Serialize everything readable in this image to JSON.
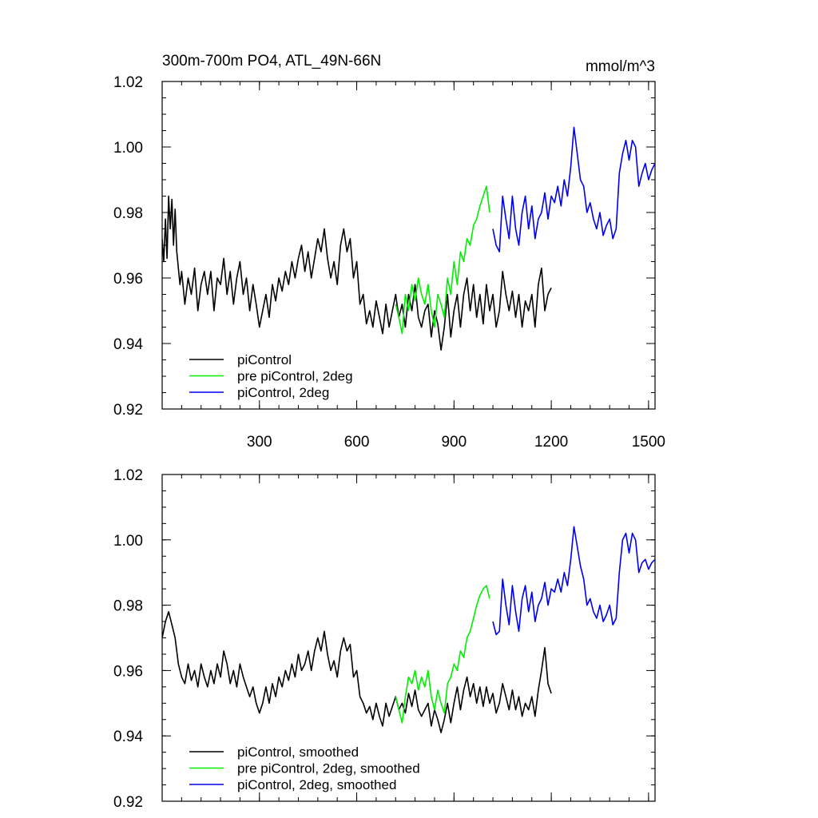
{
  "chart_data": [
    {
      "type": "line",
      "title": "300m-700m PO4, ATL_49N-66N",
      "units": "mmol/m^3",
      "xlim": [
        0,
        1520
      ],
      "ylim": [
        0.92,
        1.02
      ],
      "x_ticks": [
        300,
        600,
        900,
        1200,
        1500
      ],
      "x_tick_labels": [
        "300",
        "600",
        "900",
        "1200",
        "1500"
      ],
      "y_ticks": [
        0.92,
        0.94,
        0.96,
        0.98,
        1.0,
        1.02
      ],
      "y_tick_labels": [
        "0.92",
        "0.94",
        "0.96",
        "0.98",
        "1.00",
        "1.02"
      ],
      "legend_position": "bottom-left",
      "series": [
        {
          "name": "piControl",
          "color": "#000000",
          "x": [
            0,
            5,
            10,
            15,
            20,
            25,
            30,
            35,
            40,
            45,
            50,
            55,
            60,
            70,
            80,
            90,
            100,
            110,
            120,
            130,
            140,
            150,
            160,
            170,
            180,
            190,
            200,
            210,
            220,
            230,
            240,
            250,
            260,
            270,
            280,
            290,
            300,
            310,
            320,
            330,
            340,
            350,
            360,
            370,
            380,
            390,
            400,
            410,
            420,
            430,
            440,
            450,
            460,
            470,
            480,
            490,
            500,
            510,
            520,
            530,
            540,
            550,
            560,
            570,
            580,
            590,
            600,
            610,
            620,
            630,
            640,
            650,
            660,
            670,
            680,
            690,
            700,
            710,
            720,
            730,
            740,
            750,
            760,
            770,
            780,
            790,
            800,
            810,
            820,
            830,
            840,
            850,
            860,
            870,
            880,
            890,
            900,
            910,
            920,
            930,
            940,
            950,
            960,
            970,
            980,
            990,
            1000,
            1010,
            1020,
            1030,
            1040,
            1050,
            1060,
            1070,
            1080,
            1090,
            1100,
            1110,
            1120,
            1130,
            1140,
            1150,
            1160,
            1170,
            1180,
            1190,
            1200
          ],
          "values": [
            0.972,
            0.965,
            0.978,
            0.966,
            0.985,
            0.975,
            0.984,
            0.97,
            0.981,
            0.968,
            0.963,
            0.958,
            0.962,
            0.952,
            0.96,
            0.955,
            0.963,
            0.95,
            0.958,
            0.962,
            0.955,
            0.962,
            0.95,
            0.96,
            0.958,
            0.966,
            0.955,
            0.962,
            0.952,
            0.96,
            0.965,
            0.955,
            0.96,
            0.95,
            0.958,
            0.952,
            0.945,
            0.95,
            0.955,
            0.948,
            0.958,
            0.953,
            0.96,
            0.956,
            0.962,
            0.958,
            0.965,
            0.96,
            0.966,
            0.97,
            0.962,
            0.968,
            0.96,
            0.966,
            0.972,
            0.968,
            0.975,
            0.966,
            0.96,
            0.965,
            0.958,
            0.97,
            0.975,
            0.968,
            0.972,
            0.96,
            0.965,
            0.952,
            0.955,
            0.946,
            0.95,
            0.945,
            0.953,
            0.948,
            0.943,
            0.952,
            0.945,
            0.95,
            0.955,
            0.948,
            0.952,
            0.945,
            0.955,
            0.95,
            0.958,
            0.948,
            0.945,
            0.95,
            0.952,
            0.942,
            0.95,
            0.946,
            0.938,
            0.945,
            0.955,
            0.942,
            0.95,
            0.955,
            0.945,
            0.955,
            0.96,
            0.95,
            0.958,
            0.948,
            0.955,
            0.946,
            0.958,
            0.95,
            0.955,
            0.945,
            0.95,
            0.962,
            0.955,
            0.95,
            0.956,
            0.948,
            0.955,
            0.945,
            0.953,
            0.95,
            0.955,
            0.945,
            0.958,
            0.963,
            0.95,
            0.955,
            0.957
          ]
        },
        {
          "name": "pre piControl, 2deg",
          "color": "#00ee00",
          "x": [
            720,
            730,
            740,
            750,
            760,
            770,
            780,
            790,
            800,
            810,
            820,
            830,
            840,
            850,
            860,
            870,
            880,
            890,
            900,
            910,
            920,
            930,
            940,
            950,
            960,
            970,
            980,
            990,
            1000,
            1010
          ],
          "values": [
            0.952,
            0.948,
            0.943,
            0.955,
            0.95,
            0.958,
            0.953,
            0.96,
            0.955,
            0.952,
            0.958,
            0.95,
            0.945,
            0.955,
            0.952,
            0.948,
            0.96,
            0.955,
            0.965,
            0.958,
            0.968,
            0.965,
            0.972,
            0.97,
            0.976,
            0.978,
            0.982,
            0.985,
            0.988,
            0.98
          ]
        },
        {
          "name": "piControl, 2deg",
          "color": "#0000ee",
          "x": [
            1020,
            1030,
            1040,
            1050,
            1060,
            1070,
            1080,
            1090,
            1100,
            1110,
            1120,
            1130,
            1140,
            1150,
            1160,
            1170,
            1180,
            1190,
            1200,
            1210,
            1220,
            1230,
            1240,
            1250,
            1260,
            1270,
            1280,
            1290,
            1300,
            1310,
            1320,
            1330,
            1340,
            1350,
            1360,
            1370,
            1380,
            1390,
            1400,
            1410,
            1420,
            1430,
            1440,
            1450,
            1460,
            1470,
            1480,
            1490,
            1500,
            1510,
            1520
          ],
          "values": [
            0.975,
            0.97,
            0.968,
            0.985,
            0.978,
            0.972,
            0.985,
            0.975,
            0.97,
            0.98,
            0.985,
            0.975,
            0.982,
            0.972,
            0.978,
            0.98,
            0.986,
            0.978,
            0.985,
            0.983,
            0.988,
            0.982,
            0.99,
            0.985,
            0.994,
            1.006,
            0.998,
            0.99,
            0.988,
            0.98,
            0.983,
            0.978,
            0.975,
            0.98,
            0.973,
            0.976,
            0.978,
            0.972,
            0.975,
            0.992,
            0.998,
            1.002,
            0.996,
            1.002,
            1.0,
            0.988,
            0.992,
            0.995,
            0.99,
            0.993,
            0.995
          ]
        }
      ]
    },
    {
      "type": "line",
      "xlim": [
        0,
        1520
      ],
      "ylim": [
        0.92,
        1.02
      ],
      "x_ticks": [
        300,
        600,
        900,
        1200,
        1500
      ],
      "y_ticks": [
        0.92,
        0.94,
        0.96,
        0.98,
        1.0,
        1.02
      ],
      "y_tick_labels": [
        "0.92",
        "0.94",
        "0.96",
        "0.98",
        "1.00",
        "1.02"
      ],
      "legend_position": "bottom-left",
      "series": [
        {
          "name": "piControl, smoothed",
          "color": "#000000",
          "x": [
            0,
            10,
            20,
            30,
            40,
            50,
            60,
            70,
            80,
            90,
            100,
            110,
            120,
            130,
            140,
            150,
            160,
            170,
            180,
            190,
            200,
            210,
            220,
            230,
            240,
            250,
            260,
            270,
            280,
            290,
            300,
            310,
            320,
            330,
            340,
            350,
            360,
            370,
            380,
            390,
            400,
            410,
            420,
            430,
            440,
            450,
            460,
            470,
            480,
            490,
            500,
            510,
            520,
            530,
            540,
            550,
            560,
            570,
            580,
            590,
            600,
            610,
            620,
            630,
            640,
            650,
            660,
            670,
            680,
            690,
            700,
            710,
            720,
            730,
            740,
            750,
            760,
            770,
            780,
            790,
            800,
            810,
            820,
            830,
            840,
            850,
            860,
            870,
            880,
            890,
            900,
            910,
            920,
            930,
            940,
            950,
            960,
            970,
            980,
            990,
            1000,
            1010,
            1020,
            1030,
            1040,
            1050,
            1060,
            1070,
            1080,
            1090,
            1100,
            1110,
            1120,
            1130,
            1140,
            1150,
            1160,
            1170,
            1180,
            1190,
            1200
          ],
          "values": [
            0.97,
            0.975,
            0.978,
            0.974,
            0.97,
            0.962,
            0.958,
            0.956,
            0.962,
            0.957,
            0.96,
            0.955,
            0.962,
            0.958,
            0.955,
            0.96,
            0.956,
            0.962,
            0.958,
            0.966,
            0.962,
            0.956,
            0.96,
            0.955,
            0.962,
            0.958,
            0.955,
            0.952,
            0.955,
            0.95,
            0.947,
            0.95,
            0.955,
            0.95,
            0.956,
            0.952,
            0.958,
            0.955,
            0.96,
            0.957,
            0.962,
            0.958,
            0.965,
            0.96,
            0.962,
            0.966,
            0.96,
            0.966,
            0.97,
            0.966,
            0.972,
            0.965,
            0.96,
            0.963,
            0.958,
            0.966,
            0.97,
            0.966,
            0.968,
            0.958,
            0.96,
            0.952,
            0.95,
            0.947,
            0.949,
            0.945,
            0.95,
            0.946,
            0.943,
            0.95,
            0.946,
            0.949,
            0.952,
            0.948,
            0.95,
            0.947,
            0.953,
            0.949,
            0.954,
            0.948,
            0.946,
            0.948,
            0.95,
            0.943,
            0.948,
            0.945,
            0.941,
            0.945,
            0.95,
            0.944,
            0.95,
            0.955,
            0.948,
            0.954,
            0.958,
            0.952,
            0.956,
            0.95,
            0.955,
            0.949,
            0.955,
            0.95,
            0.953,
            0.947,
            0.95,
            0.956,
            0.952,
            0.948,
            0.954,
            0.948,
            0.952,
            0.946,
            0.95,
            0.948,
            0.952,
            0.946,
            0.954,
            0.96,
            0.967,
            0.956,
            0.953
          ]
        },
        {
          "name": "pre piControl, 2deg, smoothed",
          "color": "#00ee00",
          "x": [
            720,
            730,
            740,
            750,
            760,
            770,
            780,
            790,
            800,
            810,
            820,
            830,
            840,
            850,
            860,
            870,
            880,
            890,
            900,
            910,
            920,
            930,
            940,
            950,
            960,
            970,
            980,
            990,
            1000,
            1010
          ],
          "values": [
            0.952,
            0.948,
            0.944,
            0.952,
            0.958,
            0.956,
            0.96,
            0.954,
            0.958,
            0.955,
            0.96,
            0.952,
            0.948,
            0.954,
            0.95,
            0.947,
            0.956,
            0.958,
            0.962,
            0.96,
            0.966,
            0.964,
            0.97,
            0.972,
            0.976,
            0.98,
            0.983,
            0.985,
            0.986,
            0.982
          ]
        },
        {
          "name": "piControl, 2deg, smoothed",
          "color": "#0000ee",
          "x": [
            1020,
            1030,
            1040,
            1050,
            1060,
            1070,
            1080,
            1090,
            1100,
            1110,
            1120,
            1130,
            1140,
            1150,
            1160,
            1170,
            1180,
            1190,
            1200,
            1210,
            1220,
            1230,
            1240,
            1250,
            1260,
            1270,
            1280,
            1290,
            1300,
            1310,
            1320,
            1330,
            1340,
            1350,
            1360,
            1370,
            1380,
            1390,
            1400,
            1410,
            1420,
            1430,
            1440,
            1450,
            1460,
            1470,
            1480,
            1490,
            1500,
            1510,
            1520
          ],
          "values": [
            0.975,
            0.971,
            0.972,
            0.988,
            0.98,
            0.974,
            0.986,
            0.978,
            0.972,
            0.982,
            0.986,
            0.978,
            0.984,
            0.975,
            0.98,
            0.982,
            0.987,
            0.98,
            0.985,
            0.984,
            0.988,
            0.984,
            0.99,
            0.986,
            0.994,
            1.004,
            0.998,
            0.992,
            0.988,
            0.98,
            0.982,
            0.978,
            0.976,
            0.98,
            0.975,
            0.977,
            0.98,
            0.974,
            0.976,
            0.99,
            1.0,
            1.002,
            0.996,
            1.002,
            1.0,
            0.99,
            0.993,
            0.994,
            0.991,
            0.993,
            0.994
          ]
        }
      ]
    }
  ]
}
